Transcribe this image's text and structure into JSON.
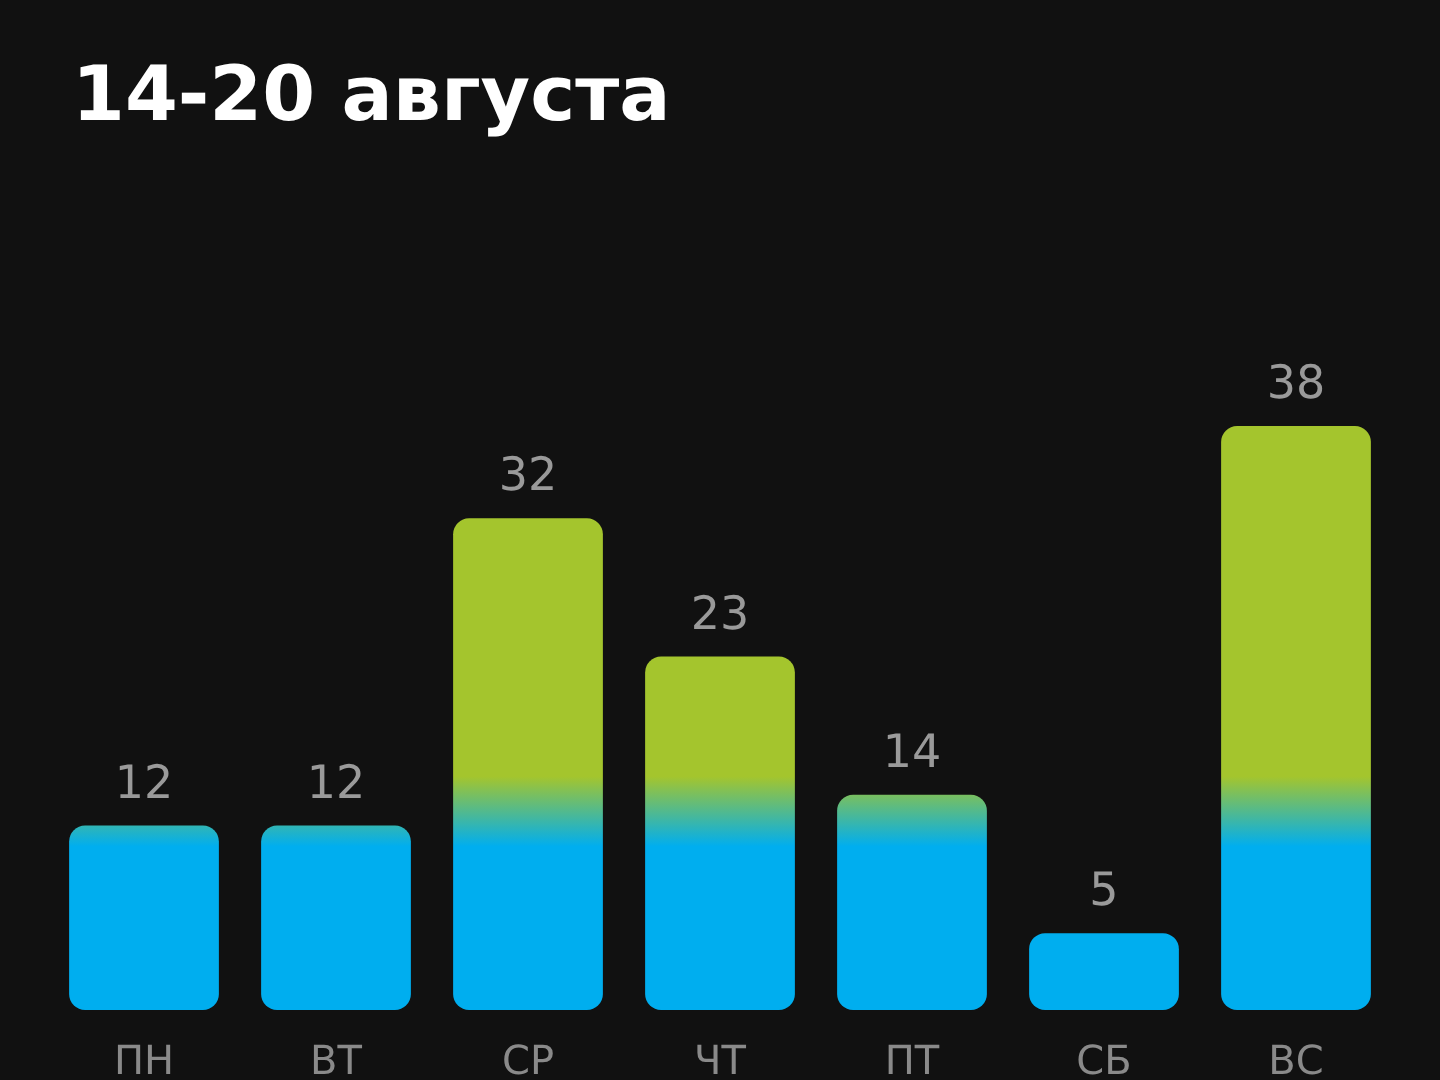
{
  "chart_data": {
    "type": "bar",
    "title": "14-20 августа",
    "categories": [
      "ПН",
      "ВТ",
      "СР",
      "ЧТ",
      "ПТ",
      "СБ",
      "ВС",
      null
    ],
    "color": "#00aeef",
    "values": [
      12,
      12,
      32,
      23,
      14,
      5,
      38,
      null
    ],
    "data_labels": true
  }
}
